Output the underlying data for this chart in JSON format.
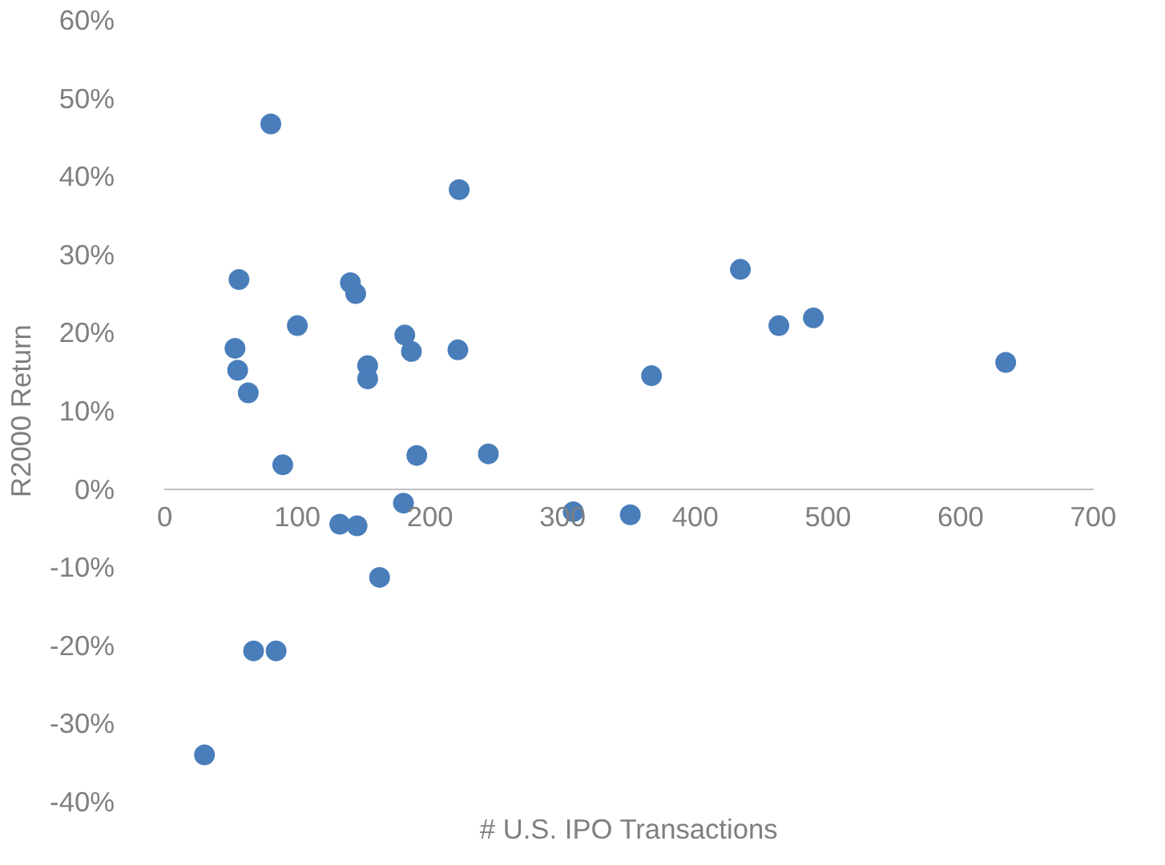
{
  "chart_data": {
    "type": "scatter",
    "xlabel": "# U.S. IPO Transactions",
    "ylabel": "R2000 Return",
    "xlim": [
      0,
      700
    ],
    "xticks": [
      0,
      100,
      200,
      300,
      400,
      500,
      600,
      700
    ],
    "ylim": [
      -40,
      60
    ],
    "yticks": [
      {
        "value": -40,
        "label": "-40%"
      },
      {
        "value": -30,
        "label": "-30%"
      },
      {
        "value": -20,
        "label": "-20%"
      },
      {
        "value": -10,
        "label": "-10%"
      },
      {
        "value": 0,
        "label": "0%"
      },
      {
        "value": 10,
        "label": "10%"
      },
      {
        "value": 20,
        "label": "20%"
      },
      {
        "value": 30,
        "label": "30%"
      },
      {
        "value": 40,
        "label": "40%"
      },
      {
        "value": 50,
        "label": "50%"
      },
      {
        "value": 60,
        "label": "60%"
      }
    ],
    "grid": false,
    "marker": "circle",
    "series": [
      {
        "color": "#4a7ebb",
        "x": [
          80,
          222,
          56,
          140,
          144,
          100,
          53,
          181,
          186,
          221,
          55,
          153,
          153,
          63,
          89,
          190,
          244,
          132,
          145,
          180,
          162,
          67,
          84,
          30,
          308,
          351,
          367,
          434,
          463,
          489,
          634
        ],
        "values": [
          46.7,
          38.3,
          26.8,
          26.4,
          25.0,
          20.9,
          18.0,
          19.7,
          17.6,
          17.8,
          15.2,
          15.8,
          14.1,
          12.3,
          3.1,
          4.3,
          4.5,
          -4.5,
          -4.7,
          -1.8,
          -11.3,
          -20.7,
          -20.7,
          -34.0,
          -2.9,
          -3.3,
          14.5,
          28.1,
          20.9,
          21.9,
          16.2
        ]
      }
    ]
  }
}
